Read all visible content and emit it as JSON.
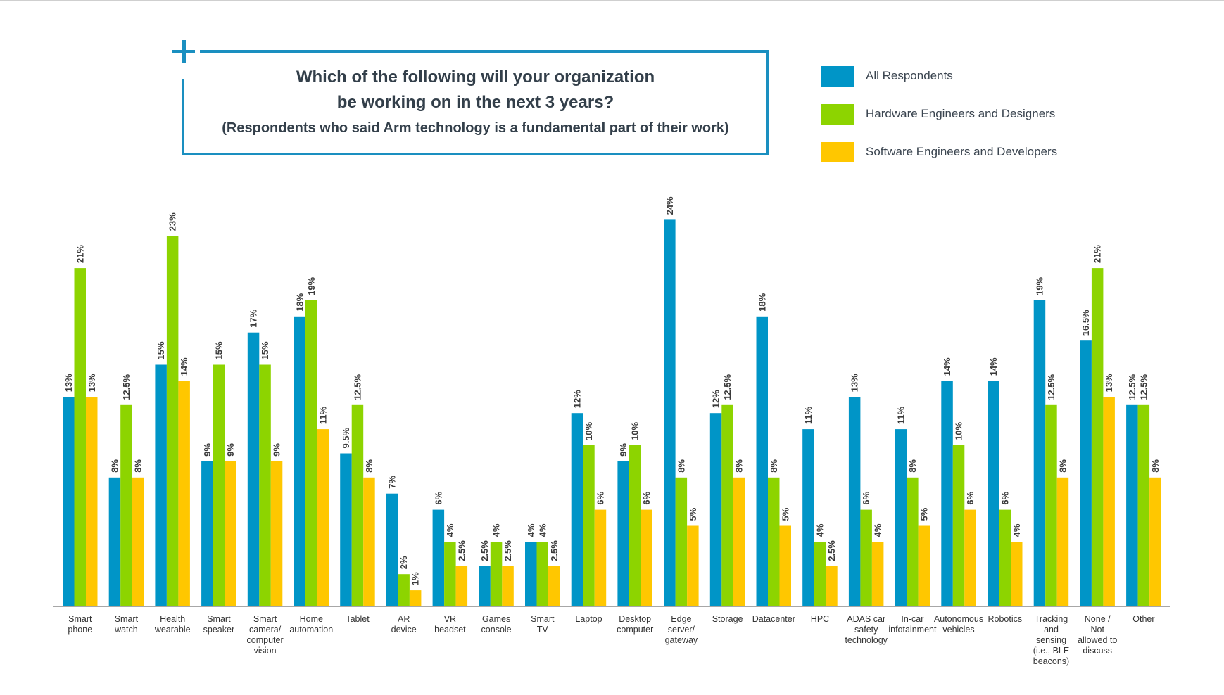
{
  "title": {
    "line1": "Which of the following will your organization",
    "line2": "be working on in the next 3 years?",
    "subtitle": "(Respondents who said Arm technology is a fundamental part of their work)"
  },
  "colors": {
    "all": "#0095c7",
    "hardware": "#8dd400",
    "software": "#ffc700",
    "accent": "#1a8fc0",
    "axis": "#8a8a8a",
    "text": "#3b3b3b"
  },
  "chart_data": {
    "type": "bar",
    "title": "Which of the following will your organization be working on in the next 3 years?",
    "subtitle": "(Respondents who said Arm technology is a fundamental part of their work)",
    "xlabel": "",
    "ylabel": "",
    "ylim": [
      0,
      24
    ],
    "grid": false,
    "legend_position": "top-right",
    "categories": [
      [
        "Smart",
        "phone"
      ],
      [
        "Smart",
        "watch"
      ],
      [
        "Health",
        "wearable"
      ],
      [
        "Smart",
        "speaker"
      ],
      [
        "Smart",
        "camera/",
        "computer",
        "vision"
      ],
      [
        "Home",
        "automation"
      ],
      [
        "Tablet"
      ],
      [
        "AR",
        "device"
      ],
      [
        "VR",
        "headset"
      ],
      [
        "Games",
        "console"
      ],
      [
        "Smart",
        "TV"
      ],
      [
        "Laptop"
      ],
      [
        "Desktop",
        "computer"
      ],
      [
        "Edge",
        "server/",
        "gateway"
      ],
      [
        "Storage"
      ],
      [
        "Datacenter"
      ],
      [
        "HPC"
      ],
      [
        "ADAS car",
        "safety",
        "technology"
      ],
      [
        "In-car",
        "infotainment"
      ],
      [
        "Autonomous",
        "vehicles"
      ],
      [
        "Robotics"
      ],
      [
        "Tracking",
        "and",
        "sensing",
        "(i.e., BLE",
        "beacons)"
      ],
      [
        "None /",
        "Not",
        "allowed to",
        "discuss"
      ],
      [
        "Other"
      ]
    ],
    "series": [
      {
        "name": "All Respondents",
        "colorKey": "all",
        "values": [
          13,
          8,
          15,
          9,
          17,
          18,
          9.5,
          7,
          6,
          2.5,
          4,
          12,
          9,
          24,
          12,
          18,
          11,
          13,
          11,
          14,
          14,
          19,
          16.5,
          12.5
        ]
      },
      {
        "name": "Hardware Engineers and Designers",
        "colorKey": "hardware",
        "values": [
          21,
          12.5,
          23,
          15,
          15,
          19,
          12.5,
          2,
          4,
          4,
          4,
          10,
          10,
          8,
          12.5,
          8,
          4,
          6,
          8,
          10,
          6,
          12.5,
          21,
          12.5
        ]
      },
      {
        "name": "Software Engineers and Developers",
        "colorKey": "software",
        "values": [
          13,
          8,
          14,
          9,
          9,
          11,
          8,
          1,
          2.5,
          2.5,
          2.5,
          6,
          6,
          5,
          8,
          5,
          2.5,
          4,
          5,
          6,
          4,
          8,
          13,
          8
        ]
      }
    ]
  }
}
